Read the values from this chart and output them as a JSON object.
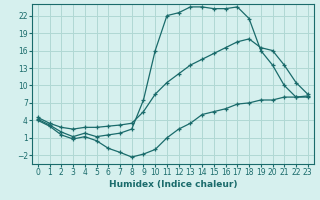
{
  "xlabel": "Humidex (Indice chaleur)",
  "background_color": "#d6f0ee",
  "grid_color": "#b0d8d4",
  "line_color": "#1a6b6b",
  "xlim": [
    -0.5,
    23.5
  ],
  "ylim": [
    -3.5,
    24.0
  ],
  "xticks": [
    0,
    1,
    2,
    3,
    4,
    5,
    6,
    7,
    8,
    9,
    10,
    11,
    12,
    13,
    14,
    15,
    16,
    17,
    18,
    19,
    20,
    21,
    22,
    23
  ],
  "yticks": [
    -2,
    1,
    4,
    7,
    10,
    13,
    16,
    19,
    22
  ],
  "series1_x": [
    0,
    1,
    2,
    3,
    4,
    5,
    6,
    7,
    8,
    9,
    10,
    11,
    12,
    13,
    14,
    15,
    16,
    17,
    18,
    19,
    20,
    21,
    22,
    23
  ],
  "series1_y": [
    4.0,
    3.0,
    1.5,
    0.8,
    1.2,
    0.5,
    -0.8,
    -1.5,
    -2.3,
    -1.8,
    -1.0,
    1.0,
    2.5,
    3.5,
    5.0,
    5.5,
    6.0,
    6.8,
    7.0,
    7.5,
    7.5,
    8.0,
    8.0,
    8.0
  ],
  "series2_x": [
    0,
    1,
    2,
    3,
    4,
    5,
    6,
    7,
    8,
    9,
    10,
    11,
    12,
    13,
    14,
    15,
    16,
    17,
    18,
    19,
    20,
    21,
    22,
    23
  ],
  "series2_y": [
    4.5,
    3.5,
    2.8,
    2.5,
    2.8,
    2.8,
    3.0,
    3.2,
    3.5,
    5.5,
    8.5,
    10.5,
    12.0,
    13.5,
    14.5,
    15.5,
    16.5,
    17.5,
    18.0,
    16.5,
    16.0,
    13.5,
    10.5,
    8.5
  ],
  "series3_x": [
    0,
    1,
    2,
    3,
    4,
    5,
    6,
    7,
    8,
    9,
    10,
    11,
    12,
    13,
    14,
    15,
    16,
    17,
    18,
    19,
    20,
    21,
    22,
    23
  ],
  "series3_y": [
    4.2,
    3.2,
    2.0,
    1.2,
    1.8,
    1.2,
    1.5,
    1.8,
    2.5,
    7.5,
    16.0,
    22.0,
    22.5,
    23.5,
    23.5,
    23.2,
    23.2,
    23.5,
    21.5,
    16.0,
    13.5,
    10.0,
    8.0,
    8.2
  ]
}
